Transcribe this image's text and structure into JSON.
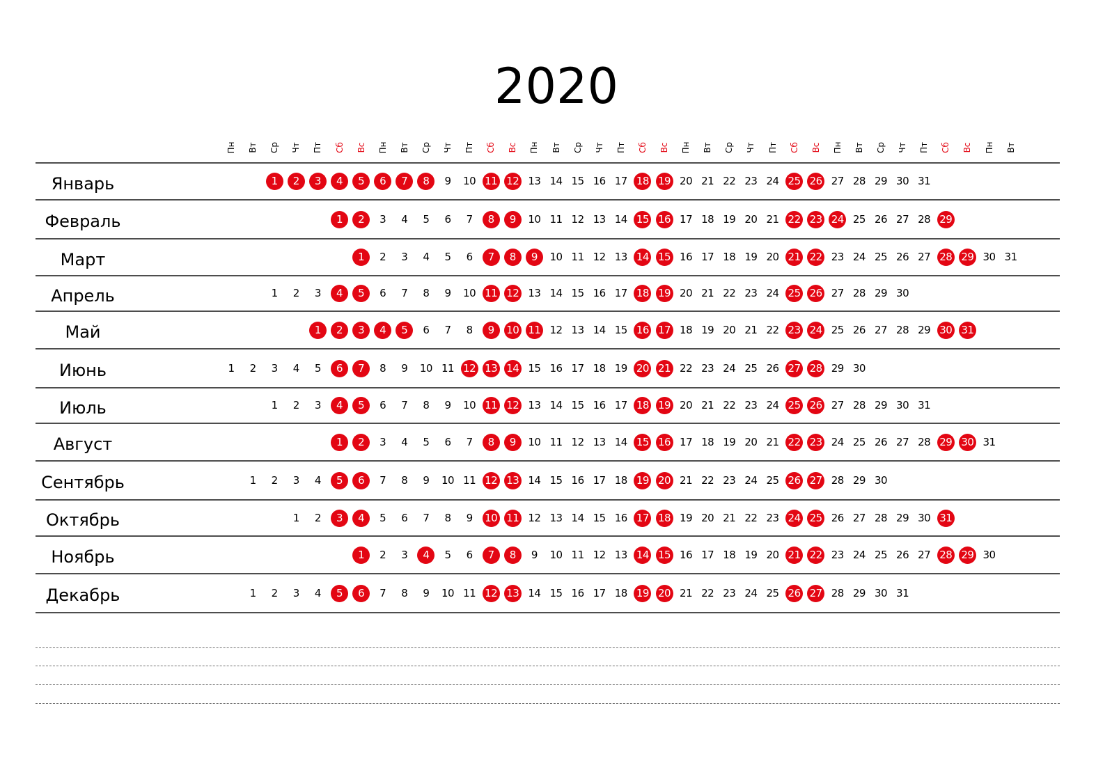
{
  "title": "2020",
  "weekday_header": [
    "Пн",
    "Вт",
    "Ср",
    "Чт",
    "Пт",
    "Сб",
    "Вс",
    "Пн",
    "Вт",
    "Ср",
    "Чт",
    "Пт",
    "Сб",
    "Вс",
    "Пн",
    "Вт",
    "Ср",
    "Чт",
    "Пт",
    "Сб",
    "Вс",
    "Пн",
    "Вт",
    "Ср",
    "Чт",
    "Пт",
    "Сб",
    "Вс",
    "Пн",
    "Вт",
    "Ср",
    "Чт",
    "Пт",
    "Сб",
    "Вс",
    "Пн",
    "Вт"
  ],
  "colors": {
    "accent": "#e30613",
    "line": "#4d4d4d",
    "dashed": "#707070"
  },
  "months": [
    {
      "name": "Январь",
      "offset": 2,
      "days": 31,
      "red": [
        1,
        2,
        3,
        4,
        5,
        6,
        7,
        8,
        11,
        12,
        18,
        19,
        25,
        26
      ]
    },
    {
      "name": "Февраль",
      "offset": 5,
      "days": 29,
      "red": [
        1,
        2,
        8,
        9,
        15,
        16,
        22,
        23,
        24,
        29
      ]
    },
    {
      "name": "Март",
      "offset": 6,
      "days": 31,
      "red": [
        1,
        7,
        8,
        9,
        14,
        15,
        21,
        22,
        28,
        29
      ]
    },
    {
      "name": "Апрель",
      "offset": 2,
      "days": 30,
      "red": [
        4,
        5,
        11,
        12,
        18,
        19,
        25,
        26
      ]
    },
    {
      "name": "Май",
      "offset": 4,
      "days": 31,
      "red": [
        1,
        2,
        3,
        4,
        5,
        9,
        10,
        11,
        16,
        17,
        23,
        24,
        30,
        31
      ]
    },
    {
      "name": "Июнь",
      "offset": 0,
      "days": 30,
      "red": [
        6,
        7,
        12,
        13,
        14,
        20,
        21,
        27,
        28
      ]
    },
    {
      "name": "Июль",
      "offset": 2,
      "days": 31,
      "red": [
        4,
        5,
        11,
        12,
        18,
        19,
        25,
        26
      ]
    },
    {
      "name": "Август",
      "offset": 5,
      "days": 31,
      "red": [
        1,
        2,
        8,
        9,
        15,
        16,
        22,
        23,
        29,
        30
      ]
    },
    {
      "name": "Сентябрь",
      "offset": 1,
      "days": 30,
      "red": [
        5,
        6,
        12,
        13,
        19,
        20,
        26,
        27
      ]
    },
    {
      "name": "Октябрь",
      "offset": 3,
      "days": 31,
      "red": [
        3,
        4,
        10,
        11,
        17,
        18,
        24,
        25,
        31
      ]
    },
    {
      "name": "Ноябрь",
      "offset": 6,
      "days": 30,
      "red": [
        1,
        4,
        7,
        8,
        14,
        15,
        21,
        22,
        28,
        29
      ]
    },
    {
      "name": "Декабрь",
      "offset": 1,
      "days": 31,
      "red": [
        5,
        6,
        12,
        13,
        19,
        20,
        26,
        27
      ]
    }
  ]
}
